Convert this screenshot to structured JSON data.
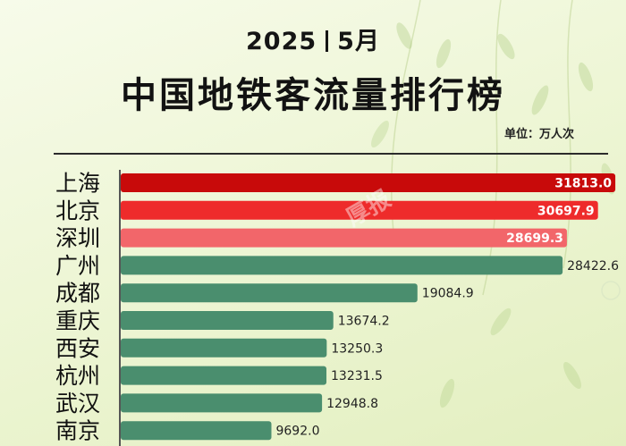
{
  "header": {
    "year": "2025",
    "month": "5月",
    "title": "中国地铁客流量排行榜",
    "unit": "单位：万人次"
  },
  "watermark": "厚报",
  "colors": {
    "rank1": "#c80a0a",
    "rank2": "#ee2b2b",
    "rank3": "#f2666a",
    "others": "#4a8e6e"
  },
  "chart_data": {
    "type": "bar",
    "orientation": "horizontal",
    "title": "中国地铁客流量排行榜",
    "subtitle": "2025 | 5月",
    "unit": "万人次",
    "categories": [
      "上海",
      "北京",
      "深圳",
      "广州",
      "成都",
      "重庆",
      "西安",
      "杭州",
      "武汉",
      "南京"
    ],
    "values": [
      31813.0,
      30697.9,
      28699.3,
      28422.6,
      19084.9,
      13674.2,
      13250.3,
      13231.5,
      12948.8,
      9692.0
    ],
    "xlim": [
      0,
      32500
    ],
    "grid": false,
    "legend": "none"
  }
}
